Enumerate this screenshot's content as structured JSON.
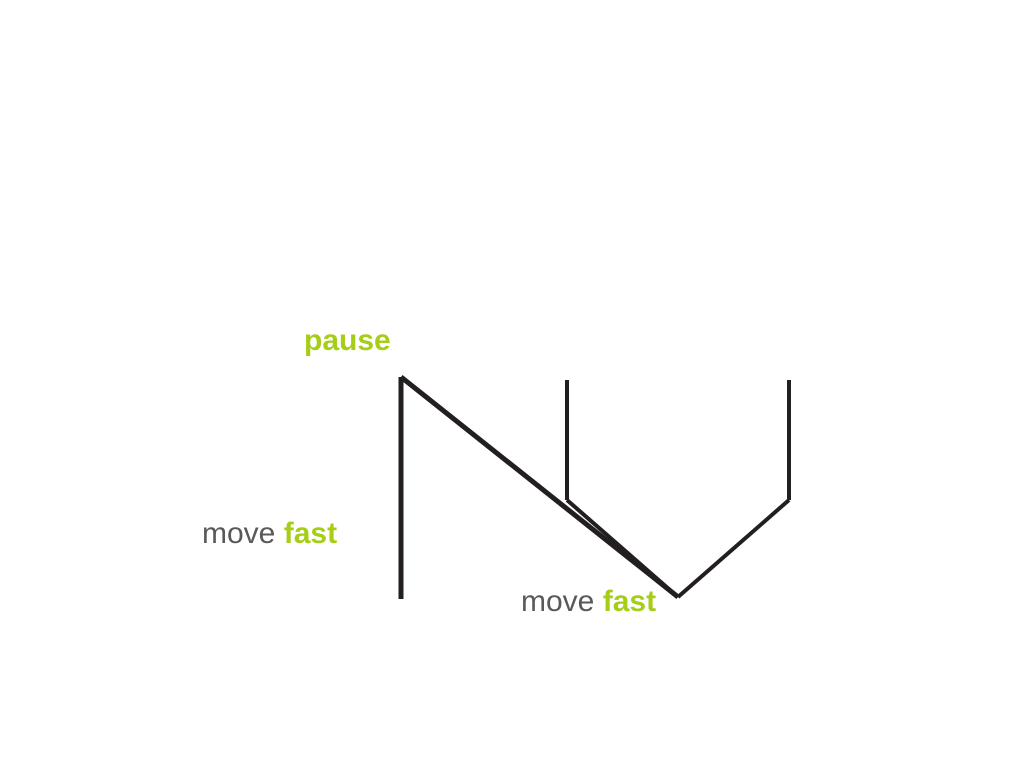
{
  "colors": {
    "stroke": "#231f20",
    "accent": "#a6ce19",
    "text": "#58595b",
    "background": "#ffffff"
  },
  "labels": {
    "pause": "pause",
    "move_left": {
      "plain": "move",
      "accent": "fast"
    },
    "move_bottom": {
      "plain": "move",
      "accent": "fast"
    }
  }
}
